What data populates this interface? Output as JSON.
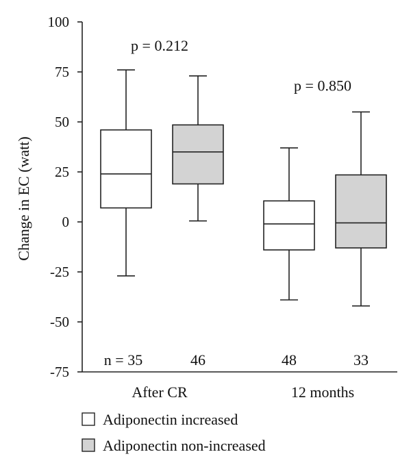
{
  "chart_data": {
    "type": "boxplot",
    "ylabel": "Change in EC (watt)",
    "ylim": [
      -75,
      100
    ],
    "yticks": [
      100,
      75,
      50,
      25,
      0,
      -25,
      -50,
      -75
    ],
    "ytick_labels": [
      "100",
      "75",
      "50",
      "25",
      "0",
      "-25",
      "-50",
      "-75"
    ],
    "grid": false,
    "categories": [
      "After CR",
      "12 months"
    ],
    "series": [
      {
        "name": "Adiponectin increased",
        "color": "#ffffff"
      },
      {
        "name": "Adiponectin non-increased",
        "color": "#d3d3d3"
      }
    ],
    "boxes": [
      {
        "category": "After CR",
        "series": "Adiponectin increased",
        "min": -27,
        "q1": 7,
        "median": 24,
        "q3": 46,
        "max": 76,
        "n_label": "n = 35"
      },
      {
        "category": "After CR",
        "series": "Adiponectin non-increased",
        "min": 0.5,
        "q1": 19,
        "median": 35,
        "q3": 48.5,
        "max": 73,
        "n_label": "46"
      },
      {
        "category": "12 months",
        "series": "Adiponectin increased",
        "min": -39,
        "q1": -14,
        "median": -1,
        "q3": 10.5,
        "max": 37,
        "n_label": "48"
      },
      {
        "category": "12 months",
        "series": "Adiponectin non-increased",
        "min": -42,
        "q1": -13,
        "median": -0.5,
        "q3": 23.5,
        "max": 55,
        "n_label": "33"
      }
    ],
    "annotations": [
      {
        "category": "After CR",
        "text": "p = 0.212",
        "y": 88
      },
      {
        "category": "12 months",
        "text": "p = 0.850",
        "y": 68
      }
    ],
    "legend_position": "bottom-left"
  }
}
